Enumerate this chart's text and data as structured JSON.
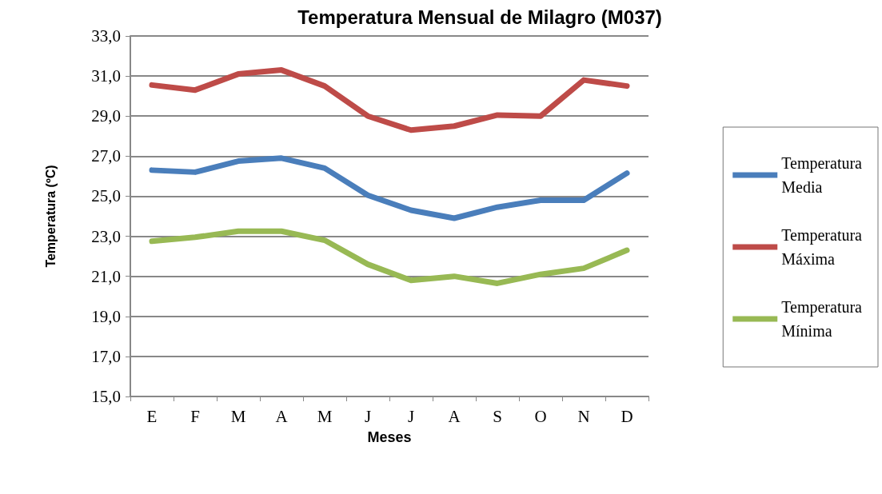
{
  "chart_data": {
    "type": "line",
    "title": "Temperatura Mensual de Milagro (M037)",
    "xlabel": "Meses",
    "ylabel": "Temperatura (ºC)",
    "categories": [
      "E",
      "F",
      "M",
      "A",
      "M",
      "J",
      "J",
      "A",
      "S",
      "O",
      "N",
      "D"
    ],
    "series": [
      {
        "name": "Temperatura Media",
        "color": "#4a7ebb",
        "values": [
          26.3,
          26.2,
          26.75,
          26.9,
          26.4,
          25.05,
          24.3,
          23.9,
          24.45,
          24.8,
          24.8,
          26.15
        ]
      },
      {
        "name": "Temperatura Máxima",
        "color": "#be4b48",
        "values": [
          30.55,
          30.3,
          31.1,
          31.3,
          30.5,
          29.0,
          28.3,
          28.5,
          29.05,
          29.0,
          30.8,
          30.5
        ]
      },
      {
        "name": "Temperatura Mínima",
        "color": "#98b954",
        "values": [
          22.75,
          22.95,
          23.25,
          23.25,
          22.8,
          21.6,
          20.8,
          21.0,
          20.65,
          21.1,
          21.4,
          22.3
        ]
      }
    ],
    "ylim": [
      15,
      33
    ],
    "yticks": [
      {
        "value": 15,
        "label": "15,0"
      },
      {
        "value": 17,
        "label": "17,0"
      },
      {
        "value": 19,
        "label": "19,0"
      },
      {
        "value": 21,
        "label": "21,0"
      },
      {
        "value": 23,
        "label": "23,0"
      },
      {
        "value": 25,
        "label": "25,0"
      },
      {
        "value": 27,
        "label": "27,0"
      },
      {
        "value": 29,
        "label": "29,0"
      },
      {
        "value": 31,
        "label": "31,0"
      },
      {
        "value": 33,
        "label": "33,0"
      }
    ],
    "grid": "y",
    "legend": "right",
    "marker": "none",
    "line_style": "solid"
  }
}
